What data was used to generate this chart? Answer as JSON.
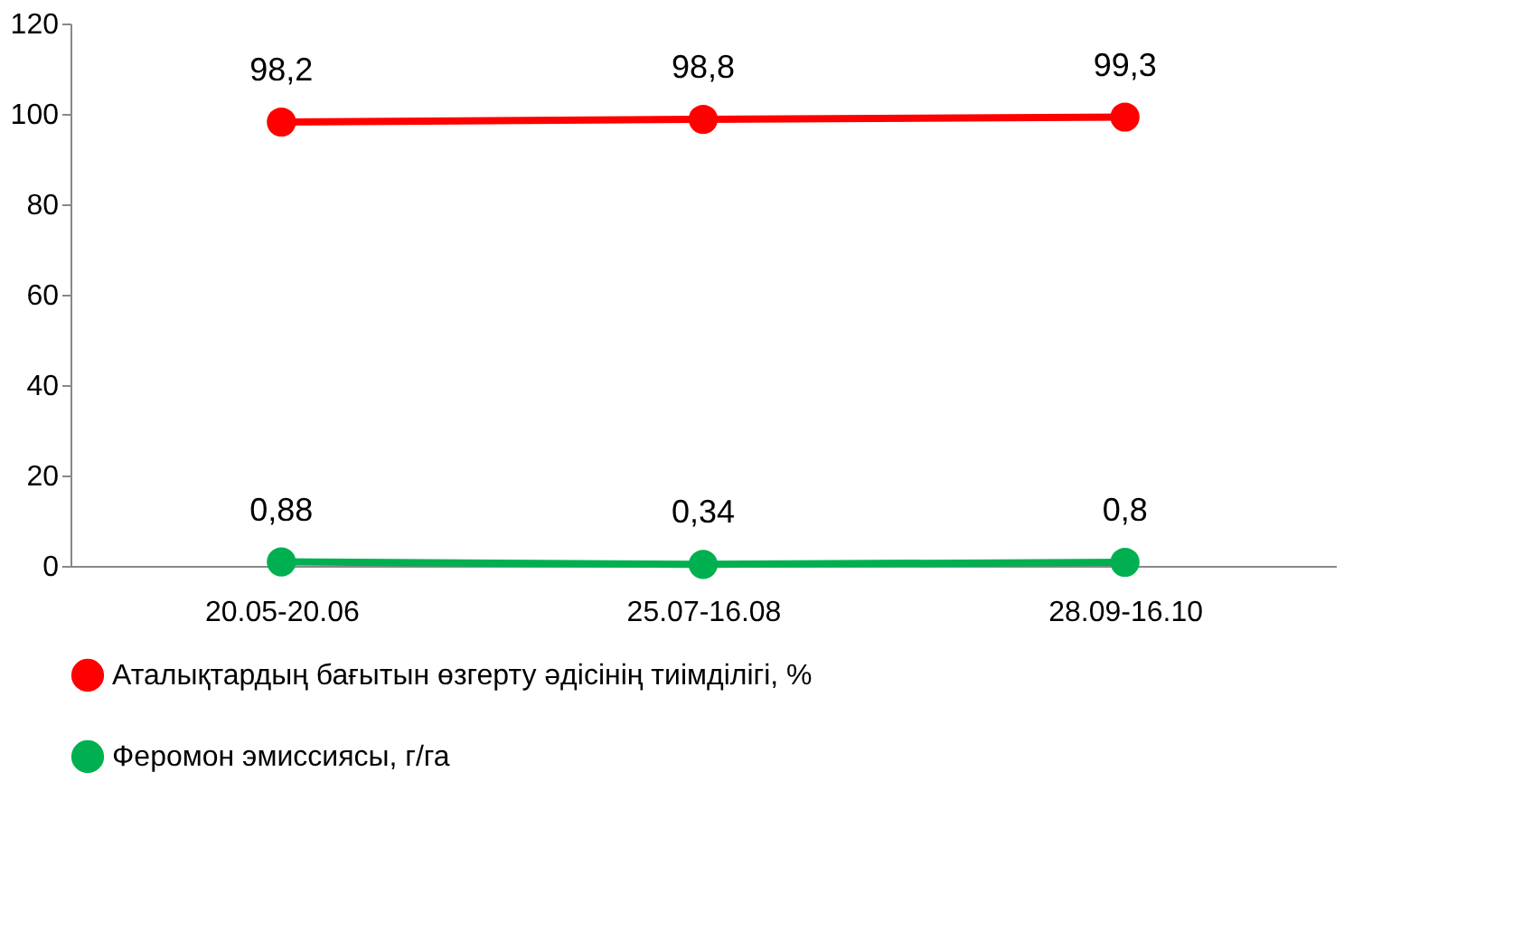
{
  "chart_data": {
    "type": "line",
    "categories": [
      "20.05-20.06",
      "25.07-16.08",
      "28.09-16.10"
    ],
    "series": [
      {
        "name": "Аталықтардың бағытын өзгерту әдісінің тиімділігі, %",
        "color": "#ff0000",
        "values": [
          98.2,
          98.8,
          99.3
        ],
        "value_labels": [
          "98,2",
          "98,8",
          "99,3"
        ]
      },
      {
        "name": "Феромон эмиссиясы, г/га",
        "color": "#00b050",
        "values": [
          0.88,
          0.34,
          0.8
        ],
        "value_labels": [
          "0,88",
          "0,34",
          "0,8"
        ]
      }
    ],
    "ylim": [
      0,
      120
    ],
    "yticks": [
      0,
      20,
      40,
      60,
      80,
      100,
      120
    ],
    "legend": "bottom",
    "marker": "circle",
    "line_style": "solid"
  }
}
